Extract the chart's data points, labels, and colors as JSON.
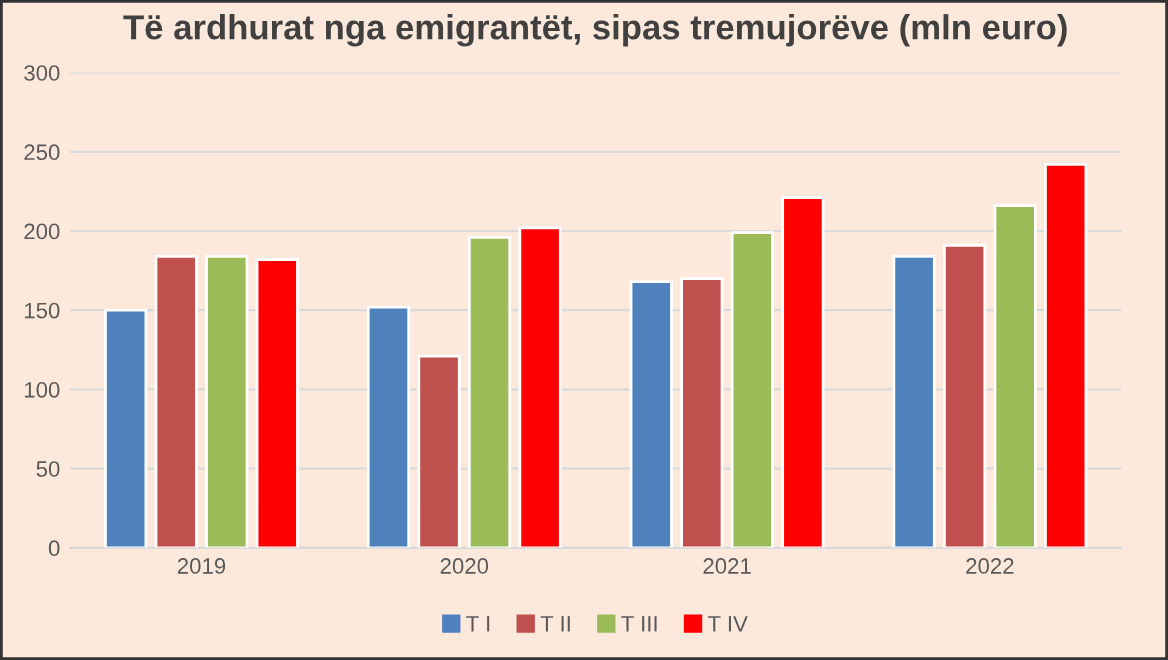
{
  "chart_data": {
    "type": "bar",
    "title": "Të ardhurat nga emigrantët, sipas tremujorëve (mln euro)",
    "categories": [
      "2019",
      "2020",
      "2021",
      "2022"
    ],
    "series": [
      {
        "name": "T I",
        "color": "#4f81bd",
        "values": [
          150,
          152,
          168,
          184
        ]
      },
      {
        "name": "T II",
        "color": "#c0504d",
        "values": [
          184,
          121,
          170,
          191
        ]
      },
      {
        "name": "T III",
        "color": "#9bbb59",
        "values": [
          184,
          196,
          199,
          216
        ]
      },
      {
        "name": "T IV",
        "color": "#ff0000",
        "values": [
          182,
          202,
          221,
          242
        ]
      }
    ],
    "ylim": [
      0,
      300
    ],
    "yticks": [
      0,
      50,
      100,
      150,
      200,
      250,
      300
    ],
    "grid": "y",
    "legend": "bottom"
  }
}
